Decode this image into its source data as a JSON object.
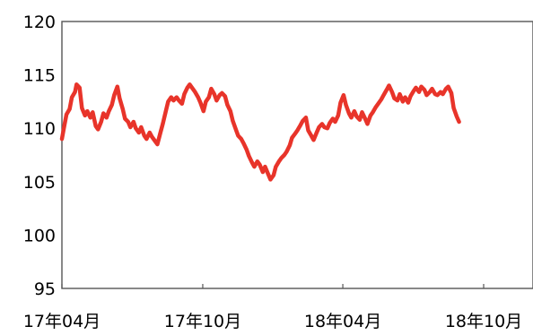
{
  "chart_data": {
    "type": "line",
    "title": "",
    "xlabel": "",
    "ylabel": "",
    "ylim": [
      95,
      120
    ],
    "yticks": [
      95,
      100,
      105,
      110,
      115,
      120
    ],
    "xticks": [
      {
        "x": "2017-04-01",
        "label": "17年04月"
      },
      {
        "x": "2017-10-01",
        "label": "17年10月"
      },
      {
        "x": "2018-04-01",
        "label": "18年04月"
      },
      {
        "x": "2018-10-01",
        "label": "18年10月"
      }
    ],
    "xlim": [
      "2017-04-01",
      "2018-12-01"
    ],
    "grid": false,
    "series": [
      {
        "color": "#e8342a",
        "points": [
          [
            "2017-04-01",
            109.0
          ],
          [
            "2017-04-04",
            110.2
          ],
          [
            "2017-04-07",
            111.3
          ],
          [
            "2017-04-11",
            111.8
          ],
          [
            "2017-04-14",
            112.9
          ],
          [
            "2017-04-18",
            113.4
          ],
          [
            "2017-04-20",
            114.1
          ],
          [
            "2017-04-24",
            113.8
          ],
          [
            "2017-04-27",
            111.9
          ],
          [
            "2017-05-01",
            111.2
          ],
          [
            "2017-05-04",
            111.6
          ],
          [
            "2017-05-08",
            111.0
          ],
          [
            "2017-05-11",
            111.5
          ],
          [
            "2017-05-15",
            110.2
          ],
          [
            "2017-05-18",
            109.9
          ],
          [
            "2017-05-22",
            110.6
          ],
          [
            "2017-05-25",
            111.4
          ],
          [
            "2017-05-29",
            111.0
          ],
          [
            "2017-06-01",
            111.6
          ],
          [
            "2017-06-05",
            112.2
          ],
          [
            "2017-06-08",
            113.1
          ],
          [
            "2017-06-12",
            113.9
          ],
          [
            "2017-06-15",
            112.8
          ],
          [
            "2017-06-19",
            111.8
          ],
          [
            "2017-06-22",
            110.9
          ],
          [
            "2017-06-26",
            110.6
          ],
          [
            "2017-06-29",
            110.1
          ],
          [
            "2017-07-03",
            110.6
          ],
          [
            "2017-07-06",
            110.0
          ],
          [
            "2017-07-10",
            109.6
          ],
          [
            "2017-07-13",
            110.1
          ],
          [
            "2017-07-17",
            109.3
          ],
          [
            "2017-07-20",
            109.0
          ],
          [
            "2017-07-24",
            109.6
          ],
          [
            "2017-07-27",
            109.2
          ],
          [
            "2017-07-31",
            108.8
          ],
          [
            "2017-08-03",
            108.5
          ],
          [
            "2017-08-07",
            109.6
          ],
          [
            "2017-08-10",
            110.4
          ],
          [
            "2017-08-14",
            111.6
          ],
          [
            "2017-08-17",
            112.5
          ],
          [
            "2017-08-21",
            112.9
          ],
          [
            "2017-08-24",
            112.6
          ],
          [
            "2017-08-28",
            112.9
          ],
          [
            "2017-08-31",
            112.6
          ],
          [
            "2017-09-04",
            112.3
          ],
          [
            "2017-09-07",
            113.2
          ],
          [
            "2017-09-11",
            113.8
          ],
          [
            "2017-09-14",
            114.1
          ],
          [
            "2017-09-18",
            113.7
          ],
          [
            "2017-09-21",
            113.4
          ],
          [
            "2017-09-25",
            112.9
          ],
          [
            "2017-09-28",
            112.4
          ],
          [
            "2017-10-02",
            111.6
          ],
          [
            "2017-10-05",
            112.5
          ],
          [
            "2017-10-09",
            112.9
          ],
          [
            "2017-10-12",
            113.7
          ],
          [
            "2017-10-16",
            113.2
          ],
          [
            "2017-10-19",
            112.6
          ],
          [
            "2017-10-23",
            113.1
          ],
          [
            "2017-10-26",
            113.3
          ],
          [
            "2017-10-30",
            113.0
          ],
          [
            "2017-11-02",
            112.2
          ],
          [
            "2017-11-06",
            111.6
          ],
          [
            "2017-11-09",
            110.7
          ],
          [
            "2017-11-13",
            109.9
          ],
          [
            "2017-11-16",
            109.3
          ],
          [
            "2017-11-20",
            109.0
          ],
          [
            "2017-11-23",
            108.6
          ],
          [
            "2017-11-27",
            108.0
          ],
          [
            "2017-11-30",
            107.4
          ],
          [
            "2017-12-04",
            106.8
          ],
          [
            "2017-12-07",
            106.4
          ],
          [
            "2017-12-11",
            106.9
          ],
          [
            "2017-12-14",
            106.6
          ],
          [
            "2017-12-18",
            105.9
          ],
          [
            "2017-12-21",
            106.4
          ],
          [
            "2017-12-25",
            105.7
          ],
          [
            "2017-12-28",
            105.2
          ],
          [
            "2018-01-01",
            105.6
          ],
          [
            "2018-01-04",
            106.4
          ],
          [
            "2018-01-08",
            106.9
          ],
          [
            "2018-01-11",
            107.2
          ],
          [
            "2018-01-15",
            107.5
          ],
          [
            "2018-01-18",
            107.8
          ],
          [
            "2018-01-22",
            108.4
          ],
          [
            "2018-01-25",
            109.1
          ],
          [
            "2018-01-29",
            109.5
          ],
          [
            "2018-02-01",
            109.8
          ],
          [
            "2018-02-05",
            110.3
          ],
          [
            "2018-02-08",
            110.7
          ],
          [
            "2018-02-12",
            111.0
          ],
          [
            "2018-02-15",
            109.8
          ],
          [
            "2018-02-19",
            109.3
          ],
          [
            "2018-02-22",
            108.9
          ],
          [
            "2018-02-26",
            109.6
          ],
          [
            "2018-03-01",
            110.1
          ],
          [
            "2018-03-05",
            110.4
          ],
          [
            "2018-03-08",
            110.1
          ],
          [
            "2018-03-12",
            110.0
          ],
          [
            "2018-03-15",
            110.5
          ],
          [
            "2018-03-19",
            110.9
          ],
          [
            "2018-03-22",
            110.6
          ],
          [
            "2018-03-26",
            111.2
          ],
          [
            "2018-03-29",
            112.4
          ],
          [
            "2018-04-02",
            113.1
          ],
          [
            "2018-04-05",
            112.2
          ],
          [
            "2018-04-09",
            111.4
          ],
          [
            "2018-04-12",
            111.0
          ],
          [
            "2018-04-16",
            111.6
          ],
          [
            "2018-04-19",
            111.1
          ],
          [
            "2018-04-23",
            110.8
          ],
          [
            "2018-04-26",
            111.5
          ],
          [
            "2018-04-30",
            110.9
          ],
          [
            "2018-05-03",
            110.4
          ],
          [
            "2018-05-07",
            111.2
          ],
          [
            "2018-05-10",
            111.5
          ],
          [
            "2018-05-14",
            112.0
          ],
          [
            "2018-05-17",
            112.3
          ],
          [
            "2018-05-21",
            112.7
          ],
          [
            "2018-05-24",
            113.1
          ],
          [
            "2018-05-28",
            113.6
          ],
          [
            "2018-05-31",
            114.0
          ],
          [
            "2018-06-04",
            113.4
          ],
          [
            "2018-06-07",
            112.8
          ],
          [
            "2018-06-11",
            112.6
          ],
          [
            "2018-06-14",
            113.2
          ],
          [
            "2018-06-18",
            112.5
          ],
          [
            "2018-06-21",
            112.9
          ],
          [
            "2018-06-25",
            112.4
          ],
          [
            "2018-06-28",
            113.0
          ],
          [
            "2018-07-02",
            113.5
          ],
          [
            "2018-07-05",
            113.8
          ],
          [
            "2018-07-09",
            113.4
          ],
          [
            "2018-07-12",
            113.9
          ],
          [
            "2018-07-16",
            113.6
          ],
          [
            "2018-07-19",
            113.1
          ],
          [
            "2018-07-23",
            113.4
          ],
          [
            "2018-07-26",
            113.7
          ],
          [
            "2018-07-30",
            113.2
          ],
          [
            "2018-08-02",
            113.1
          ],
          [
            "2018-08-06",
            113.4
          ],
          [
            "2018-08-09",
            113.2
          ],
          [
            "2018-08-13",
            113.7
          ],
          [
            "2018-08-16",
            113.9
          ],
          [
            "2018-08-20",
            113.3
          ],
          [
            "2018-08-23",
            111.9
          ],
          [
            "2018-08-27",
            111.1
          ],
          [
            "2018-08-30",
            110.6
          ]
        ]
      }
    ]
  }
}
